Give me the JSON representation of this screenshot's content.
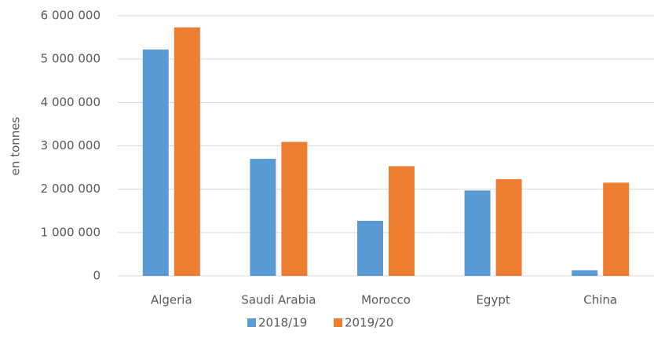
{
  "chart_data": {
    "type": "bar",
    "y_label": "en tonnes",
    "categories": [
      "Algeria",
      "Saudi Arabia",
      "Morocco",
      "Egypt",
      "China"
    ],
    "series": [
      {
        "name": "2018/19",
        "color": "#5b9bd5",
        "values": [
          5220000,
          2700000,
          1270000,
          1970000,
          130000
        ]
      },
      {
        "name": "2019/20",
        "color": "#ed7d31",
        "values": [
          5730000,
          3090000,
          2530000,
          2230000,
          2150000
        ]
      }
    ],
    "ylim": [
      0,
      6000000
    ],
    "yticks": [
      0,
      {
        "value": 1000000,
        "label": "1 000 000"
      },
      {
        "value": 2000000,
        "label": "2 000 000"
      },
      {
        "value": 3000000,
        "label": "3 000 000"
      },
      {
        "value": 4000000,
        "label": "4 000 000"
      },
      {
        "value": 5000000,
        "label": "5 000 000"
      },
      {
        "value": 6000000,
        "label": "6 000 000"
      }
    ],
    "grid": true,
    "legend": "bottom"
  }
}
